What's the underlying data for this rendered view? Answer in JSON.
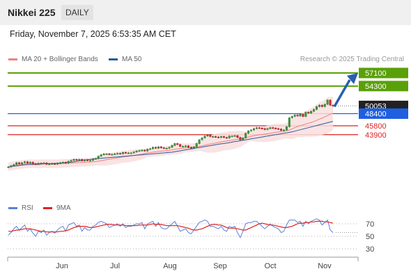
{
  "header": {
    "title": "Nikkei 225",
    "period": "DAILY"
  },
  "datetime": "Friday, November 7, 2025 6:53:35 AM CET",
  "legend": [
    {
      "label": "MA 20 + Bollinger Bands",
      "color": "#f08080"
    },
    {
      "label": "MA 50",
      "color": "#2a5a99"
    }
  ],
  "credit": "Research © 2025 Trading Central",
  "rsi_legend": [
    {
      "label": "RSI",
      "color": "#5b7fd6"
    },
    {
      "label": "9MA",
      "color": "#dd2222"
    }
  ],
  "chart_data": {
    "type": "candlestick",
    "x_ticks": [
      "Jun",
      "Jul",
      "Aug",
      "Sep",
      "Oct",
      "Nov"
    ],
    "price_levels": [
      {
        "label": "57100",
        "kind": "resistance",
        "color": "#5aa00a",
        "value": 57100
      },
      {
        "label": "54300",
        "kind": "resistance",
        "color": "#5aa00a",
        "value": 54300
      },
      {
        "label": "50053",
        "kind": "last_price",
        "color": "#222222",
        "value": 50053
      },
      {
        "label": "48400",
        "kind": "pivot",
        "color": "#1f5fe0",
        "value": 48400
      },
      {
        "label": "45800",
        "kind": "support",
        "color": "#dd2222",
        "value": 45800
      },
      {
        "label": "43900",
        "kind": "support",
        "color": "#dd2222",
        "value": 43900
      }
    ],
    "close": [
      37000,
      37250,
      37500,
      37900,
      37650,
      37900,
      38100,
      37800,
      38000,
      37700,
      37500,
      37800,
      37750,
      37850,
      37550,
      37650,
      37700,
      37600,
      37750,
      37900,
      38000,
      37800,
      38200,
      38400,
      38600,
      38500,
      38600,
      38300,
      38500,
      38400,
      38400,
      38700,
      38800,
      39300,
      39600,
      39800,
      39800,
      39650,
      39700,
      39800,
      39900,
      39800,
      40100,
      39950,
      40000,
      40000,
      40200,
      40400,
      40500,
      40600,
      40400,
      40800,
      40900,
      41200,
      41000,
      41300,
      41100,
      41000,
      41000,
      41200,
      41600,
      42000,
      41800,
      41400,
      41400,
      41500,
      41200,
      41000,
      41300,
      42000,
      42800,
      43200,
      43600,
      43800,
      43500,
      43500,
      43400,
      43300,
      43500,
      43300,
      43200,
      43600,
      43600,
      43700,
      43300,
      42800,
      43200,
      44200,
      44700,
      44900,
      45200,
      45400,
      45300,
      45200,
      45000,
      45200,
      45400,
      45300,
      45200,
      45100,
      44800,
      44900,
      45600,
      47500,
      47800,
      48100,
      47900,
      48300,
      47800,
      48700,
      48500,
      48900,
      49300,
      49900,
      50200,
      49900,
      50400,
      51300,
      50200,
      50053
    ],
    "ma50": [
      37000,
      37100,
      37150,
      37200,
      37300,
      37400,
      37450,
      37500,
      37500,
      37500,
      37550,
      37600,
      37600,
      37650,
      37700,
      37700,
      37750,
      37750,
      37800,
      37800,
      37850,
      37900,
      37950,
      38000,
      38100,
      38200,
      38300,
      38400,
      38500,
      38550,
      38600,
      38700,
      38750,
      38800,
      38850,
      38900,
      38950,
      39000,
      39050,
      39100,
      39150,
      39200,
      39250,
      39300,
      39350,
      39400,
      39450,
      39500,
      39550,
      39600,
      39650,
      39700,
      39750,
      39800,
      39850,
      39900,
      39950,
      40000,
      40050,
      40100,
      40150,
      40250,
      40350,
      40450,
      40550,
      40650,
      40750,
      40850,
      40950,
      41050,
      41150,
      41250,
      41350,
      41450,
      41550,
      41650,
      41750,
      41850,
      41950,
      42000,
      42100,
      42200,
      42300,
      42400,
      42500,
      42600,
      42700,
      42800,
      42900,
      43000,
      43100,
      43200,
      43300,
      43400,
      43500,
      43600,
      43700,
      43800,
      43900,
      44000,
      44100,
      44200,
      44300,
      44400,
      44500,
      44650,
      44800,
      44950,
      45100,
      45250,
      45400,
      45550,
      45700,
      45850,
      46000,
      46150,
      46300,
      46450,
      46600,
      46750
    ],
    "rsi": [
      52,
      56,
      62,
      66,
      60,
      64,
      68,
      58,
      62,
      55,
      50,
      58,
      56,
      60,
      52,
      56,
      58,
      55,
      60,
      64,
      66,
      58,
      68,
      70,
      72,
      66,
      68,
      58,
      64,
      60,
      60,
      66,
      68,
      72,
      74,
      72,
      70,
      64,
      66,
      68,
      70,
      66,
      70,
      64,
      66,
      66,
      68,
      70,
      70,
      72,
      62,
      70,
      72,
      74,
      66,
      72,
      64,
      62,
      62,
      66,
      70,
      74,
      66,
      58,
      60,
      62,
      56,
      54,
      60,
      66,
      72,
      74,
      76,
      74,
      66,
      66,
      64,
      62,
      66,
      60,
      58,
      66,
      64,
      66,
      56,
      48,
      58,
      70,
      72,
      72,
      74,
      74,
      70,
      66,
      62,
      66,
      70,
      66,
      64,
      62,
      56,
      58,
      68,
      76,
      76,
      76,
      72,
      74,
      66,
      74,
      70,
      74,
      76,
      78,
      76,
      68,
      72,
      76,
      60,
      56
    ],
    "rsi_ma9": [
      58,
      58,
      59,
      60,
      60,
      61,
      62,
      62,
      62,
      61,
      60,
      59,
      58,
      58,
      57,
      57,
      57,
      57,
      57,
      58,
      58,
      59,
      60,
      62,
      64,
      65,
      66,
      66,
      66,
      65,
      64,
      64,
      65,
      66,
      67,
      68,
      69,
      69,
      69,
      68,
      68,
      68,
      68,
      67,
      67,
      67,
      67,
      67,
      68,
      68,
      68,
      68,
      69,
      70,
      69,
      69,
      69,
      68,
      67,
      67,
      67,
      67,
      67,
      66,
      65,
      64,
      63,
      61,
      60,
      60,
      61,
      62,
      64,
      66,
      68,
      69,
      69,
      68,
      68,
      66,
      64,
      63,
      63,
      63,
      62,
      61,
      60,
      60,
      62,
      64,
      66,
      68,
      70,
      71,
      70,
      69,
      68,
      68,
      67,
      66,
      65,
      64,
      64,
      65,
      66,
      68,
      70,
      71,
      71,
      72,
      72,
      73,
      73,
      74,
      74,
      74,
      73,
      73,
      72,
      71
    ],
    "rsi_levels": [
      70,
      50,
      30
    ]
  }
}
